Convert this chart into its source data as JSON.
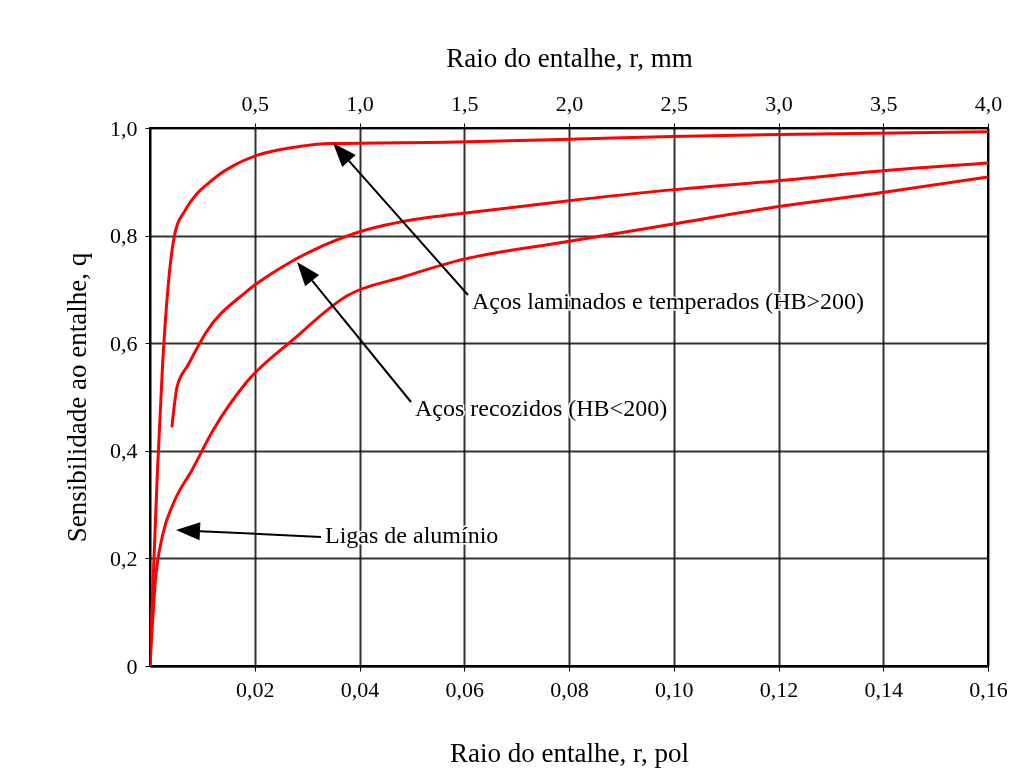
{
  "chart_data": {
    "type": "line",
    "xlabel": "Raio do entalhe, r, pol",
    "x2label": "Raio do entalhe, r, mm",
    "ylabel": "Sensibilidade ao entalhe, q",
    "xlim": [
      0,
      0.16
    ],
    "ylim": [
      0,
      1.0
    ],
    "x2lim": [
      0,
      4.0
    ],
    "xticks": [
      {
        "value": 0.02,
        "label": "0,02"
      },
      {
        "value": 0.04,
        "label": "0,04"
      },
      {
        "value": 0.06,
        "label": "0,06"
      },
      {
        "value": 0.08,
        "label": "0,08"
      },
      {
        "value": 0.1,
        "label": "0,10"
      },
      {
        "value": 0.12,
        "label": "0,12"
      },
      {
        "value": 0.14,
        "label": "0,14"
      },
      {
        "value": 0.16,
        "label": "0,16"
      }
    ],
    "yticks": [
      0,
      {
        "value": 0.2,
        "label": "0,2"
      },
      {
        "value": 0.4,
        "label": "0,4"
      },
      {
        "value": 0.6,
        "label": "0,6"
      },
      {
        "value": 0.8,
        "label": "0,8"
      },
      {
        "value": 1.0,
        "label": "1,0"
      }
    ],
    "x2ticks": [
      {
        "value": 0.5,
        "label": "0,5"
      },
      {
        "value": 1.0,
        "label": "1,0"
      },
      {
        "value": 1.5,
        "label": "1,5"
      },
      {
        "value": 2.0,
        "label": "2,0"
      },
      {
        "value": 2.5,
        "label": "2,5"
      },
      {
        "value": 3.0,
        "label": "3,0"
      },
      {
        "value": 3.5,
        "label": "3,5"
      },
      {
        "value": 4.0,
        "label": "4,0"
      }
    ],
    "grid": true,
    "line_style": "solid",
    "series": [
      {
        "color": "#ff0000",
        "x": [
          0,
          0.0003,
          0.0014,
          0.0024,
          0.0035,
          0.0049,
          0.0066,
          0.0121,
          0.0163,
          0.0204,
          0.0288,
          0.0344,
          0.0586,
          0.08,
          0.0996,
          0.12,
          0.16
        ],
        "values": [
          0,
          0.087,
          0.357,
          0.56,
          0.71,
          0.81,
          0.845,
          0.905,
          0.932,
          0.949,
          0.966,
          0.971,
          0.974,
          0.979,
          0.984,
          0.988,
          0.993
        ]
      },
      {
        "color": "#ff0000",
        "x": [
          0.0042,
          0.0052,
          0.0073,
          0.0107,
          0.0183,
          0.0267,
          0.0378,
          0.0504,
          0.0586,
          0.0792,
          0.0996,
          0.12,
          0.1405,
          0.16
        ],
        "values": [
          0.446,
          0.52,
          0.56,
          0.62,
          0.695,
          0.75,
          0.8,
          0.83,
          0.84,
          0.864,
          0.885,
          0.902,
          0.921,
          0.935
        ]
      },
      {
        "color": "#ff0000",
        "x": [
          0,
          0.001,
          0.0024,
          0.0045,
          0.008,
          0.0121,
          0.0183,
          0.0275,
          0.0378,
          0.0483,
          0.0586,
          0.0792,
          0.0996,
          0.12,
          0.1405,
          0.16
        ],
        "values": [
          0,
          0.155,
          0.243,
          0.303,
          0.364,
          0.439,
          0.526,
          0.608,
          0.689,
          0.723,
          0.753,
          0.788,
          0.821,
          0.854,
          0.881,
          0.909
        ]
      }
    ],
    "annotations": [
      "Aços laminados e temperados (HB>200)",
      "Aços recozidos (HB<200)",
      "Ligas de alumínio"
    ]
  }
}
